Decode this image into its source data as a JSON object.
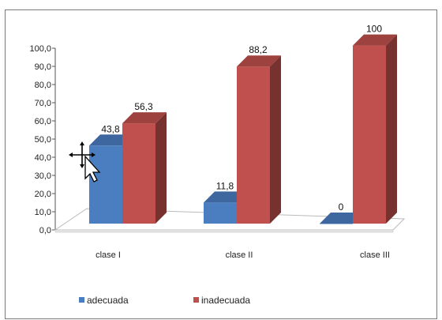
{
  "chart_data": {
    "type": "bar",
    "categories": [
      "clase I",
      "clase II",
      "clase III"
    ],
    "series": [
      {
        "name": "adecuada",
        "values": [
          43.8,
          11.8,
          0
        ],
        "color": "#4a7ec1"
      },
      {
        "name": "inadecuada",
        "values": [
          56.3,
          88.2,
          100
        ],
        "color": "#c0504d"
      }
    ],
    "data_labels": [
      [
        "43,8",
        "11,8",
        "0"
      ],
      [
        "56,3",
        "88,2",
        "100"
      ]
    ],
    "y_ticks": [
      "0,0",
      "10,0",
      "20,0",
      "30,0",
      "40,0",
      "50,0",
      "60,0",
      "70,0",
      "80,0",
      "90,0",
      "100,0"
    ],
    "ylim": [
      0,
      100
    ],
    "style": "3d-clustered-column",
    "grid": false,
    "legend_position": "bottom-left",
    "cursor_icon": "move-cursor-icon"
  }
}
